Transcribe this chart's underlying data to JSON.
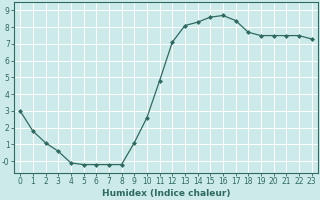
{
  "x": [
    0,
    1,
    2,
    3,
    4,
    5,
    6,
    7,
    8,
    9,
    10,
    11,
    12,
    13,
    14,
    15,
    16,
    17,
    18,
    19,
    20,
    21,
    22,
    23
  ],
  "y": [
    3.0,
    1.8,
    1.1,
    0.6,
    -0.1,
    -0.2,
    -0.2,
    -0.2,
    -0.2,
    1.1,
    2.6,
    4.8,
    7.1,
    8.1,
    8.3,
    8.6,
    8.7,
    8.4,
    7.7,
    7.5,
    7.5,
    7.5,
    7.5,
    7.3
  ],
  "line_color": "#2e6b5e",
  "marker": "D",
  "marker_size": 2.0,
  "bg_color": "#cdeaea",
  "grid_color": "#ffffff",
  "grid_lw": 0.7,
  "xlabel": "Humidex (Indice chaleur)",
  "xlim": [
    -0.5,
    23.5
  ],
  "ylim": [
    -0.7,
    9.5
  ],
  "yticks": [
    0,
    1,
    2,
    3,
    4,
    5,
    6,
    7,
    8,
    9
  ],
  "ytick_labels": [
    "-0",
    "1",
    "2",
    "3",
    "4",
    "5",
    "6",
    "7",
    "8",
    "9"
  ],
  "xticks": [
    0,
    1,
    2,
    3,
    4,
    5,
    6,
    7,
    8,
    9,
    10,
    11,
    12,
    13,
    14,
    15,
    16,
    17,
    18,
    19,
    20,
    21,
    22,
    23
  ],
  "xtick_labels": [
    "0",
    "1",
    "2",
    "3",
    "4",
    "5",
    "6",
    "7",
    "8",
    "9",
    "10",
    "11",
    "12",
    "13",
    "14",
    "15",
    "16",
    "17",
    "18",
    "19",
    "20",
    "21",
    "22",
    "23"
  ],
  "tick_color": "#2e6b5e",
  "spine_color": "#2e6b5e",
  "xlabel_fontsize": 6.5,
  "tick_fontsize": 5.5,
  "line_width": 0.9
}
